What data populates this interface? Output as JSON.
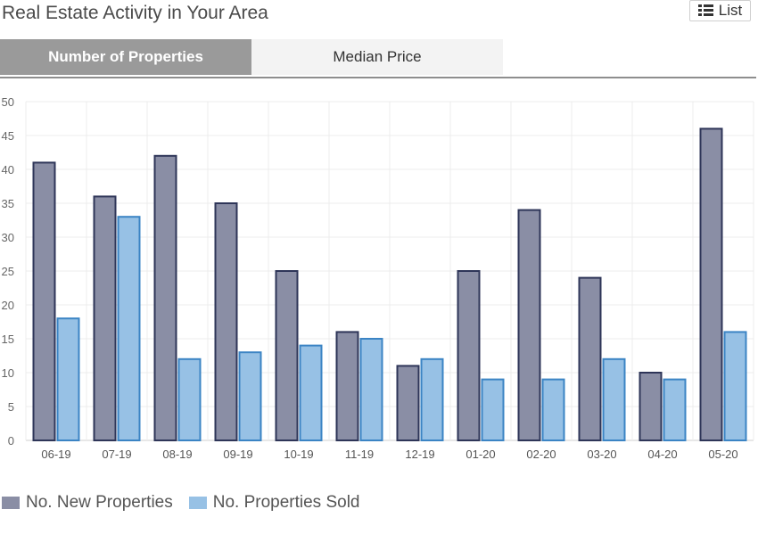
{
  "header": {
    "title": "Real Estate Activity in Your Area",
    "list_label": "List",
    "list_icon": "list-icon"
  },
  "tabs": [
    {
      "label": "Number of Properties",
      "active": true
    },
    {
      "label": "Median Price",
      "active": false
    }
  ],
  "colors": {
    "new_fill": "#8a8ea5",
    "new_stroke": "#2e3558",
    "sold_fill": "#97c1e5",
    "sold_stroke": "#3b84c4",
    "grid": "#ececec",
    "tab_active": "#9a9a9a"
  },
  "chart_data": {
    "type": "bar",
    "categories": [
      "06-19",
      "07-19",
      "08-19",
      "09-19",
      "10-19",
      "11-19",
      "12-19",
      "01-20",
      "02-20",
      "03-20",
      "04-20",
      "05-20"
    ],
    "series": [
      {
        "name": "No. New Properties",
        "values": [
          41,
          36,
          42,
          35,
          25,
          16,
          11,
          25,
          34,
          24,
          10,
          46
        ]
      },
      {
        "name": "No. Properties Sold",
        "values": [
          18,
          33,
          12,
          13,
          14,
          15,
          12,
          9,
          9,
          12,
          9,
          16
        ]
      }
    ],
    "ylim": [
      0,
      50
    ],
    "yticks": [
      0,
      5,
      10,
      15,
      20,
      25,
      30,
      35,
      40,
      45,
      50
    ],
    "grid": true,
    "legend": "bottom-left"
  }
}
